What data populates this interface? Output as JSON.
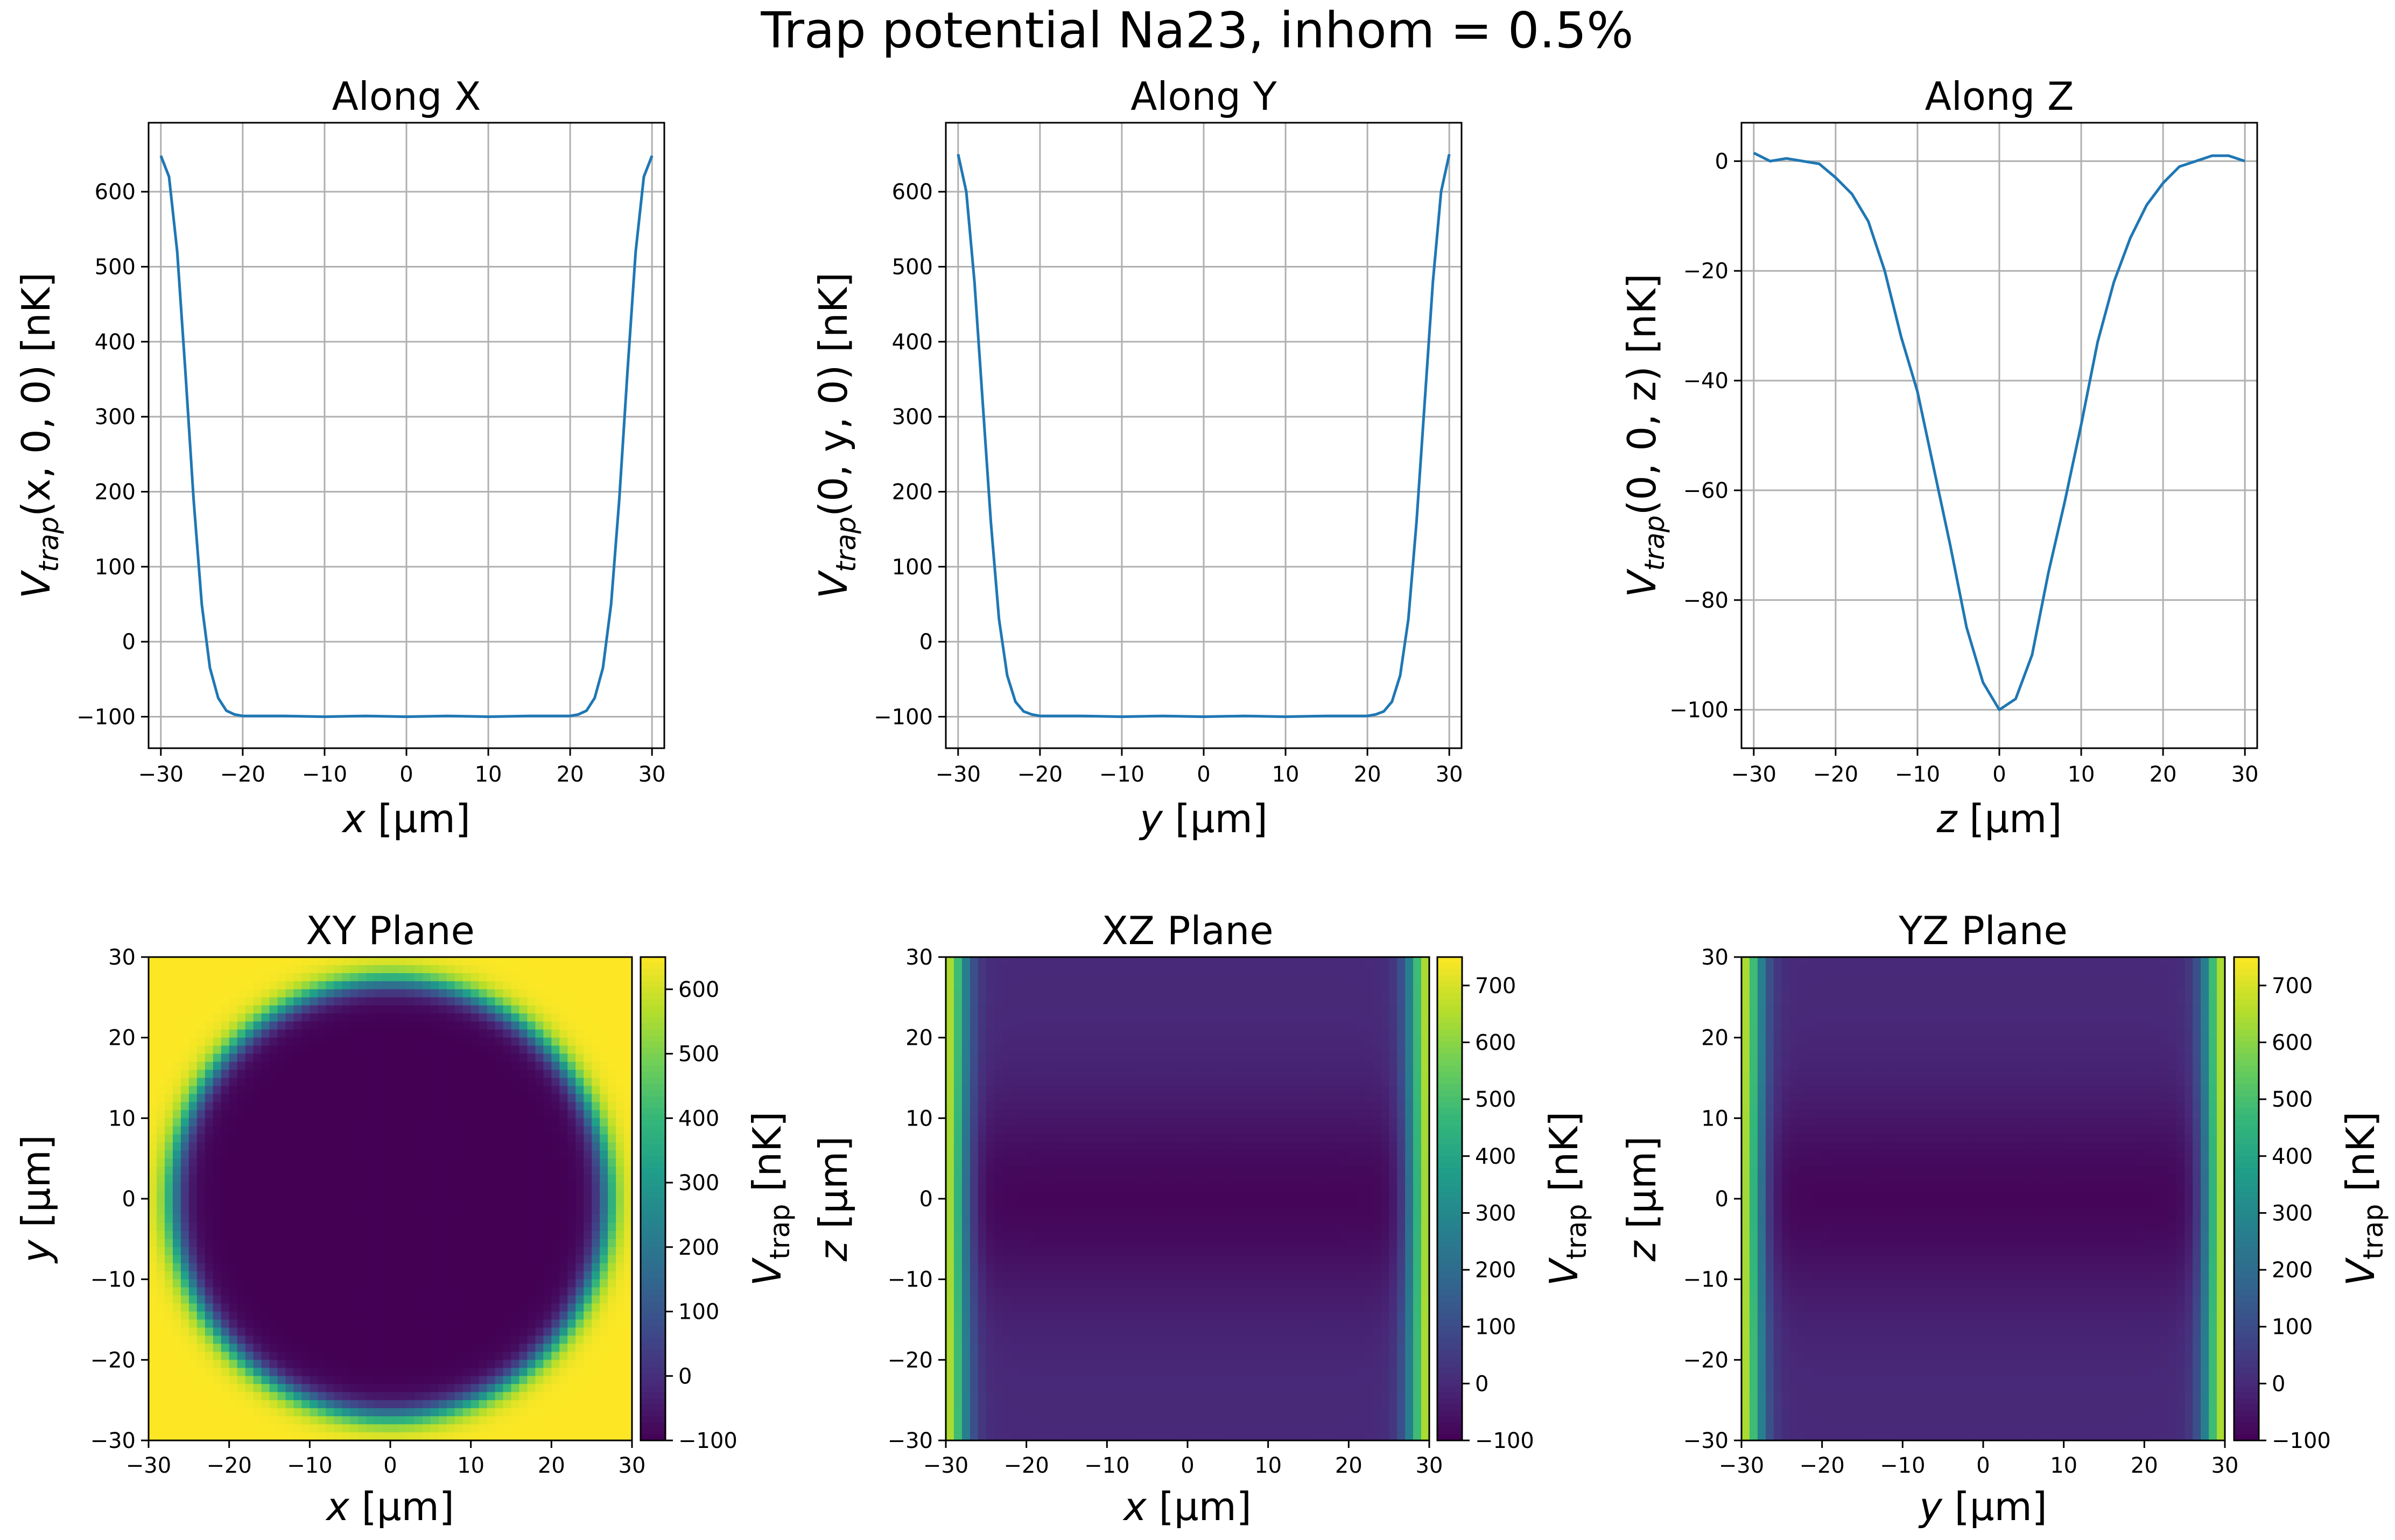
{
  "figure": {
    "suptitle": "Trap potential Na23, inhom = 0.5%"
  },
  "colors": {
    "line": "#1f77b4",
    "grid": "#b0b0b0",
    "axes": "#000000"
  },
  "colormap": {
    "name": "viridis",
    "stops": [
      "#440154",
      "#482878",
      "#3e4989",
      "#31688e",
      "#26828e",
      "#1f9e89",
      "#35b779",
      "#6ece58",
      "#b5de2b",
      "#fde725"
    ]
  },
  "chart_data": [
    {
      "id": "along-x",
      "type": "line",
      "title": "Along X",
      "xlabel_var": "x",
      "xlabel_unit": "[μm]",
      "ylabel_main": "V",
      "ylabel_sub": "trap",
      "ylabel_args": "(x, 0, 0) [nK]",
      "xlim": [
        -31.5,
        31.5
      ],
      "ylim": [
        -142,
        692
      ],
      "xticks": [
        -30,
        -20,
        -10,
        0,
        10,
        20,
        30
      ],
      "xtick_labels": [
        "−30",
        "−20",
        "−10",
        "0",
        "10",
        "20",
        "30"
      ],
      "yticks": [
        -100,
        0,
        100,
        200,
        300,
        400,
        500,
        600
      ],
      "ytick_labels": [
        "−100",
        "0",
        "100",
        "200",
        "300",
        "400",
        "500",
        "600"
      ],
      "grid": true,
      "x": [
        -30,
        -29,
        -28,
        -27,
        -26,
        -25,
        -24,
        -23,
        -22,
        -21,
        -20,
        -15,
        -10,
        -5,
        0,
        5,
        10,
        15,
        20,
        21,
        22,
        23,
        24,
        25,
        26,
        27,
        28,
        29,
        30
      ],
      "y": [
        648,
        620,
        520,
        360,
        190,
        50,
        -35,
        -75,
        -92,
        -97,
        -99,
        -99,
        -100,
        -99,
        -100,
        -99,
        -100,
        -99,
        -99,
        -97,
        -92,
        -75,
        -35,
        50,
        190,
        360,
        520,
        620,
        648
      ]
    },
    {
      "id": "along-y",
      "type": "line",
      "title": "Along Y",
      "xlabel_var": "y",
      "xlabel_unit": "[μm]",
      "ylabel_main": "V",
      "ylabel_sub": "trap",
      "ylabel_args": "(0, y, 0) [nK]",
      "xlim": [
        -31.5,
        31.5
      ],
      "ylim": [
        -142,
        692
      ],
      "xticks": [
        -30,
        -20,
        -10,
        0,
        10,
        20,
        30
      ],
      "xtick_labels": [
        "−30",
        "−20",
        "−10",
        "0",
        "10",
        "20",
        "30"
      ],
      "yticks": [
        -100,
        0,
        100,
        200,
        300,
        400,
        500,
        600
      ],
      "ytick_labels": [
        "−100",
        "0",
        "100",
        "200",
        "300",
        "400",
        "500",
        "600"
      ],
      "grid": true,
      "x": [
        -30,
        -29,
        -28,
        -27,
        -26,
        -25,
        -24,
        -23,
        -22,
        -21,
        -20,
        -15,
        -10,
        -5,
        0,
        5,
        10,
        15,
        20,
        21,
        22,
        23,
        24,
        25,
        26,
        27,
        28,
        29,
        30
      ],
      "y": [
        650,
        600,
        480,
        320,
        160,
        30,
        -45,
        -80,
        -93,
        -97,
        -99,
        -99,
        -100,
        -99,
        -100,
        -99,
        -100,
        -99,
        -99,
        -97,
        -93,
        -80,
        -45,
        30,
        160,
        320,
        480,
        600,
        650
      ]
    },
    {
      "id": "along-z",
      "type": "line",
      "title": "Along Z",
      "xlabel_var": "z",
      "xlabel_unit": "[μm]",
      "ylabel_main": "V",
      "ylabel_sub": "trap",
      "ylabel_args": "(0, 0, z) [nK]",
      "xlim": [
        -31.5,
        31.5
      ],
      "ylim": [
        -107,
        7
      ],
      "xticks": [
        -30,
        -20,
        -10,
        0,
        10,
        20,
        30
      ],
      "xtick_labels": [
        "−30",
        "−20",
        "−10",
        "0",
        "10",
        "20",
        "30"
      ],
      "yticks": [
        -100,
        -80,
        -60,
        -40,
        -20,
        0
      ],
      "ytick_labels": [
        "−100",
        "−80",
        "−60",
        "−40",
        "−20",
        "0"
      ],
      "grid": true,
      "x": [
        -30,
        -28,
        -26,
        -24,
        -22,
        -20,
        -18,
        -16,
        -14,
        -12,
        -10,
        -8,
        -6,
        -4,
        -2,
        0,
        2,
        4,
        6,
        8,
        10,
        12,
        14,
        16,
        18,
        20,
        22,
        24,
        26,
        28,
        30
      ],
      "y": [
        1.5,
        0,
        0.5,
        0,
        -0.5,
        -3,
        -6,
        -11,
        -20,
        -32,
        -42,
        -56,
        -70,
        -85,
        -95,
        -100,
        -98,
        -90,
        -75,
        -62,
        -48,
        -33,
        -22,
        -14,
        -8,
        -4,
        -1,
        0,
        1,
        1,
        0
      ]
    },
    {
      "id": "xy-plane",
      "type": "heatmap",
      "title": "XY Plane",
      "xlabel_var": "x",
      "ylabel_var": "y",
      "axis_unit": "[μm]",
      "xlim": [
        -30,
        30
      ],
      "ylim": [
        -30,
        30
      ],
      "ticks": [
        -30,
        -20,
        -10,
        0,
        10,
        20,
        30
      ],
      "tick_labels": [
        "−30",
        "−20",
        "−10",
        "0",
        "10",
        "20",
        "30"
      ],
      "pattern": "radial",
      "vmin": -100,
      "vmax": 650,
      "cbar_ticks": [
        -100,
        0,
        100,
        200,
        300,
        400,
        500,
        600
      ],
      "cbar_tick_labels": [
        "−100",
        "0",
        "100",
        "200",
        "300",
        "400",
        "500",
        "600"
      ],
      "cbar_label_main": "V",
      "cbar_label_sub": "trap",
      "cbar_label_unit": "[nK]"
    },
    {
      "id": "xz-plane",
      "type": "heatmap",
      "title": "XZ Plane",
      "xlabel_var": "x",
      "ylabel_var": "z",
      "axis_unit": "[μm]",
      "xlim": [
        -30,
        30
      ],
      "ylim": [
        -30,
        30
      ],
      "ticks": [
        -30,
        -20,
        -10,
        0,
        10,
        20,
        30
      ],
      "tick_labels": [
        "−30",
        "−20",
        "−10",
        "0",
        "10",
        "20",
        "30"
      ],
      "pattern": "walls",
      "vmin": -100,
      "vmax": 750,
      "cbar_ticks": [
        -100,
        0,
        100,
        200,
        300,
        400,
        500,
        600,
        700
      ],
      "cbar_tick_labels": [
        "−100",
        "0",
        "100",
        "200",
        "300",
        "400",
        "500",
        "600",
        "700"
      ],
      "cbar_label_main": "V",
      "cbar_label_sub": "trap",
      "cbar_label_unit": "[nK]"
    },
    {
      "id": "yz-plane",
      "type": "heatmap",
      "title": "YZ Plane",
      "xlabel_var": "y",
      "ylabel_var": "z",
      "axis_unit": "[μm]",
      "xlim": [
        -30,
        30
      ],
      "ylim": [
        -30,
        30
      ],
      "ticks": [
        -30,
        -20,
        -10,
        0,
        10,
        20,
        30
      ],
      "tick_labels": [
        "−30",
        "−20",
        "−10",
        "0",
        "10",
        "20",
        "30"
      ],
      "pattern": "walls",
      "vmin": -100,
      "vmax": 750,
      "cbar_ticks": [
        -100,
        0,
        100,
        200,
        300,
        400,
        500,
        600,
        700
      ],
      "cbar_tick_labels": [
        "−100",
        "0",
        "100",
        "200",
        "300",
        "400",
        "500",
        "600",
        "700"
      ],
      "cbar_label_main": "V",
      "cbar_label_sub": "trap",
      "cbar_label_unit": "[nK]"
    }
  ]
}
